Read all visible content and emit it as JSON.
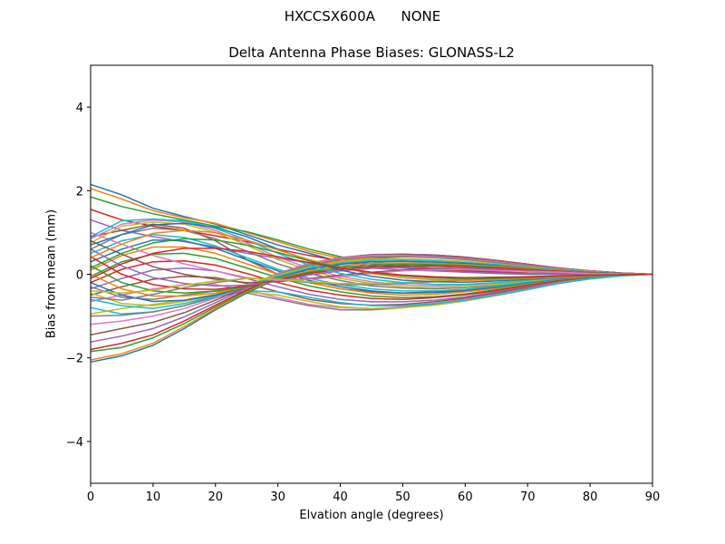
{
  "figure": {
    "suptitle": "HXCCSX600A      NONE"
  },
  "chart_data": {
    "type": "line",
    "title": "Delta Antenna Phase Biases: GLONASS-L2",
    "xlabel": "Elvation angle (degrees)",
    "ylabel": "Bias from mean (mm)",
    "xlim": [
      0,
      90
    ],
    "ylim": [
      -5,
      5
    ],
    "xticks": [
      0,
      10,
      20,
      30,
      40,
      50,
      60,
      70,
      80,
      90
    ],
    "yticks": [
      -4,
      -2,
      0,
      2,
      4
    ],
    "ytick_labels": [
      "−4",
      "−2",
      "0",
      "2",
      "4"
    ],
    "grid": false,
    "legend": "none",
    "x": [
      0,
      5,
      10,
      15,
      20,
      25,
      30,
      35,
      40,
      45,
      50,
      55,
      60,
      65,
      70,
      75,
      80,
      85,
      90
    ],
    "colors": [
      "#1f77b4",
      "#ff7f0e",
      "#2ca02c",
      "#d62728",
      "#9467bd",
      "#8c564b",
      "#e377c2",
      "#7f7f7f",
      "#bcbd22",
      "#17becf"
    ],
    "series": [
      {
        "values": [
          2.15,
          1.9,
          1.58,
          1.38,
          1.2,
          0.95,
          0.7,
          0.5,
          0.3,
          0.2,
          0.15,
          0.1,
          0.05,
          0.02,
          0.0,
          0.0,
          0.0,
          0.0,
          0.0
        ]
      },
      {
        "values": [
          2.05,
          1.8,
          1.52,
          1.35,
          1.22,
          1.0,
          0.78,
          0.55,
          0.38,
          0.25,
          0.18,
          0.12,
          0.08,
          0.05,
          0.02,
          0.01,
          0.0,
          0.0,
          0.0
        ]
      },
      {
        "values": [
          1.85,
          1.62,
          1.45,
          1.3,
          1.15,
          1.02,
          0.82,
          0.6,
          0.42,
          0.3,
          0.22,
          0.15,
          0.1,
          0.06,
          0.03,
          0.02,
          0.01,
          0.0,
          0.0
        ]
      },
      {
        "values": [
          1.55,
          1.3,
          1.15,
          1.05,
          0.92,
          0.78,
          0.6,
          0.45,
          0.32,
          0.25,
          0.18,
          0.12,
          0.08,
          0.05,
          0.03,
          0.01,
          0.0,
          0.0,
          0.0
        ]
      },
      {
        "values": [
          1.3,
          1.05,
          0.9,
          0.78,
          0.65,
          0.5,
          0.38,
          0.28,
          0.2,
          0.15,
          0.1,
          0.08,
          0.05,
          0.03,
          0.02,
          0.01,
          0.0,
          0.0,
          0.0
        ]
      },
      {
        "values": [
          0.9,
          1.05,
          1.2,
          1.1,
          0.8,
          0.35,
          0.0,
          -0.2,
          -0.35,
          -0.42,
          -0.45,
          -0.42,
          -0.38,
          -0.3,
          -0.2,
          -0.12,
          -0.06,
          -0.02,
          0.0
        ]
      },
      {
        "values": [
          0.85,
          1.2,
          1.3,
          1.25,
          1.05,
          0.75,
          0.4,
          0.15,
          -0.05,
          -0.18,
          -0.25,
          -0.28,
          -0.26,
          -0.22,
          -0.15,
          -0.1,
          -0.05,
          -0.02,
          0.0
        ]
      },
      {
        "values": [
          0.6,
          0.95,
          1.1,
          1.05,
          0.85,
          0.55,
          0.25,
          0.02,
          -0.15,
          -0.28,
          -0.33,
          -0.35,
          -0.32,
          -0.26,
          -0.18,
          -0.12,
          -0.06,
          -0.02,
          0.0
        ]
      },
      {
        "values": [
          0.75,
          1.15,
          1.25,
          1.2,
          1.0,
          0.7,
          0.35,
          0.1,
          -0.1,
          -0.22,
          -0.3,
          -0.32,
          -0.3,
          -0.24,
          -0.16,
          -0.1,
          -0.05,
          -0.02,
          0.0
        ]
      },
      {
        "values": [
          0.5,
          0.8,
          0.95,
          0.88,
          0.68,
          0.4,
          0.12,
          -0.1,
          -0.25,
          -0.35,
          -0.4,
          -0.4,
          -0.36,
          -0.28,
          -0.2,
          -0.12,
          -0.06,
          -0.02,
          0.0
        ]
      },
      {
        "values": [
          0.3,
          0.6,
          0.82,
          0.8,
          0.62,
          0.35,
          0.08,
          -0.15,
          -0.3,
          -0.4,
          -0.45,
          -0.44,
          -0.4,
          -0.32,
          -0.22,
          -0.13,
          -0.06,
          -0.02,
          0.0
        ]
      },
      {
        "values": [
          0.1,
          0.45,
          0.65,
          0.65,
          0.5,
          0.25,
          0.0,
          -0.2,
          -0.35,
          -0.45,
          -0.5,
          -0.48,
          -0.42,
          -0.34,
          -0.24,
          -0.14,
          -0.07,
          -0.02,
          0.0
        ]
      },
      {
        "values": [
          -0.05,
          0.3,
          0.48,
          0.5,
          0.38,
          0.15,
          -0.08,
          -0.28,
          -0.42,
          -0.52,
          -0.56,
          -0.54,
          -0.47,
          -0.37,
          -0.26,
          -0.15,
          -0.08,
          -0.03,
          0.0
        ]
      },
      {
        "values": [
          -0.2,
          0.12,
          0.3,
          0.32,
          0.22,
          0.02,
          -0.2,
          -0.38,
          -0.5,
          -0.58,
          -0.6,
          -0.56,
          -0.49,
          -0.39,
          -0.27,
          -0.16,
          -0.08,
          -0.03,
          0.0
        ]
      },
      {
        "values": [
          -0.35,
          -0.1,
          0.1,
          0.15,
          0.08,
          -0.1,
          -0.3,
          -0.48,
          -0.6,
          -0.66,
          -0.66,
          -0.62,
          -0.54,
          -0.42,
          -0.3,
          -0.18,
          -0.09,
          -0.03,
          0.0
        ]
      },
      {
        "values": [
          -0.5,
          -0.3,
          -0.12,
          -0.05,
          -0.08,
          -0.22,
          -0.42,
          -0.6,
          -0.7,
          -0.74,
          -0.72,
          -0.66,
          -0.57,
          -0.45,
          -0.32,
          -0.19,
          -0.09,
          -0.03,
          0.0
        ]
      },
      {
        "values": [
          -0.65,
          -0.5,
          -0.35,
          -0.25,
          -0.25,
          -0.38,
          -0.56,
          -0.72,
          -0.8,
          -0.82,
          -0.78,
          -0.7,
          -0.6,
          -0.48,
          -0.34,
          -0.2,
          -0.1,
          -0.03,
          0.0
        ]
      },
      {
        "values": [
          -0.3,
          -0.55,
          -0.6,
          -0.5,
          -0.4,
          -0.45,
          -0.6,
          -0.75,
          -0.85,
          -0.85,
          -0.8,
          -0.72,
          -0.62,
          -0.5,
          -0.35,
          -0.22,
          -0.1,
          -0.03,
          0.0
        ]
      },
      {
        "values": [
          -0.45,
          -0.7,
          -0.75,
          -0.65,
          -0.5,
          -0.42,
          -0.5,
          -0.65,
          -0.78,
          -0.82,
          -0.8,
          -0.74,
          -0.64,
          -0.51,
          -0.37,
          -0.22,
          -0.11,
          -0.04,
          0.0
        ]
      },
      {
        "values": [
          -0.8,
          -0.95,
          -0.9,
          -0.75,
          -0.55,
          -0.4,
          -0.42,
          -0.55,
          -0.68,
          -0.75,
          -0.75,
          -0.7,
          -0.62,
          -0.5,
          -0.36,
          -0.22,
          -0.11,
          -0.04,
          0.0
        ]
      },
      {
        "values": [
          -2.1,
          -1.95,
          -1.7,
          -1.3,
          -0.85,
          -0.45,
          -0.1,
          0.15,
          0.3,
          0.38,
          0.42,
          0.42,
          0.38,
          0.3,
          0.22,
          0.14,
          0.08,
          0.03,
          0.0
        ]
      },
      {
        "values": [
          -2.05,
          -1.9,
          -1.65,
          -1.25,
          -0.82,
          -0.42,
          -0.08,
          0.18,
          0.32,
          0.4,
          0.44,
          0.44,
          0.4,
          0.32,
          0.23,
          0.15,
          0.08,
          0.03,
          0.0
        ]
      },
      {
        "values": [
          -1.85,
          -1.75,
          -1.52,
          -1.18,
          -0.78,
          -0.4,
          -0.05,
          0.2,
          0.36,
          0.44,
          0.47,
          0.46,
          0.41,
          0.33,
          0.24,
          0.15,
          0.08,
          0.03,
          0.0
        ]
      },
      {
        "values": [
          -1.8,
          -1.65,
          -1.45,
          -1.12,
          -0.74,
          -0.37,
          -0.03,
          0.22,
          0.38,
          0.46,
          0.48,
          0.46,
          0.41,
          0.33,
          0.24,
          0.15,
          0.08,
          0.03,
          0.0
        ]
      },
      {
        "values": [
          -1.62,
          -1.48,
          -1.3,
          -1.02,
          -0.68,
          -0.33,
          0.0,
          0.25,
          0.4,
          0.47,
          0.48,
          0.46,
          0.4,
          0.32,
          0.23,
          0.15,
          0.08,
          0.03,
          0.0
        ]
      },
      {
        "values": [
          -1.45,
          -1.3,
          -1.15,
          -0.92,
          -0.62,
          -0.3,
          0.02,
          0.26,
          0.4,
          0.46,
          0.47,
          0.44,
          0.39,
          0.31,
          0.22,
          0.14,
          0.07,
          0.03,
          0.0
        ]
      },
      {
        "values": [
          -1.2,
          -1.12,
          -1.0,
          -0.82,
          -0.57,
          -0.28,
          0.02,
          0.25,
          0.39,
          0.45,
          0.45,
          0.42,
          0.37,
          0.3,
          0.21,
          0.13,
          0.07,
          0.02,
          0.0
        ]
      },
      {
        "values": [
          -1.0,
          -0.98,
          -0.9,
          -0.75,
          -0.53,
          -0.27,
          0.0,
          0.22,
          0.36,
          0.42,
          0.42,
          0.4,
          0.35,
          0.28,
          0.2,
          0.12,
          0.06,
          0.02,
          0.0
        ]
      },
      {
        "values": [
          -0.95,
          -0.82,
          -0.72,
          -0.62,
          -0.48,
          -0.25,
          -0.02,
          0.18,
          0.3,
          0.36,
          0.37,
          0.35,
          0.31,
          0.25,
          0.18,
          0.11,
          0.06,
          0.02,
          0.0
        ]
      },
      {
        "values": [
          -0.6,
          -0.75,
          -0.82,
          -0.7,
          -0.52,
          -0.3,
          -0.05,
          0.15,
          0.27,
          0.33,
          0.34,
          0.32,
          0.28,
          0.23,
          0.16,
          0.1,
          0.05,
          0.02,
          0.0
        ]
      },
      {
        "values": [
          -0.2,
          -0.5,
          -0.65,
          -0.62,
          -0.5,
          -0.3,
          -0.08,
          0.12,
          0.24,
          0.3,
          0.31,
          0.29,
          0.26,
          0.21,
          0.15,
          0.09,
          0.05,
          0.02,
          0.0
        ]
      },
      {
        "values": [
          0.0,
          -0.35,
          -0.52,
          -0.52,
          -0.45,
          -0.3,
          -0.1,
          0.08,
          0.2,
          0.26,
          0.27,
          0.26,
          0.23,
          0.19,
          0.14,
          0.08,
          0.04,
          0.01,
          0.0
        ]
      },
      {
        "values": [
          0.2,
          -0.2,
          -0.4,
          -0.45,
          -0.4,
          -0.3,
          -0.12,
          0.05,
          0.16,
          0.22,
          0.24,
          0.23,
          0.21,
          0.17,
          0.12,
          0.07,
          0.04,
          0.01,
          0.0
        ]
      },
      {
        "values": [
          0.42,
          0.0,
          -0.25,
          -0.35,
          -0.36,
          -0.28,
          -0.14,
          0.02,
          0.12,
          0.18,
          0.2,
          0.2,
          0.18,
          0.15,
          0.11,
          0.07,
          0.03,
          0.01,
          0.0
        ]
      },
      {
        "values": [
          0.6,
          0.2,
          -0.08,
          -0.22,
          -0.28,
          -0.26,
          -0.16,
          -0.02,
          0.08,
          0.14,
          0.16,
          0.16,
          0.15,
          0.12,
          0.09,
          0.06,
          0.03,
          0.01,
          0.0
        ]
      },
      {
        "values": [
          0.8,
          0.48,
          0.18,
          0.0,
          -0.12,
          -0.2,
          -0.18,
          -0.1,
          -0.02,
          0.05,
          0.1,
          0.12,
          0.12,
          0.1,
          0.08,
          0.05,
          0.03,
          0.01,
          0.0
        ]
      },
      {
        "values": [
          1.0,
          0.72,
          0.45,
          0.25,
          0.08,
          -0.08,
          -0.15,
          -0.12,
          -0.06,
          0.02,
          0.08,
          0.11,
          0.11,
          0.09,
          0.07,
          0.05,
          0.02,
          0.01,
          0.0
        ]
      },
      {
        "values": [
          -0.55,
          -0.62,
          -0.48,
          -0.32,
          -0.2,
          -0.1,
          -0.12,
          -0.2,
          -0.25,
          -0.25,
          -0.22,
          -0.18,
          -0.14,
          -0.1,
          -0.07,
          -0.04,
          -0.02,
          -0.01,
          0.0
        ]
      },
      {
        "values": [
          -0.4,
          -0.45,
          -0.38,
          -0.26,
          -0.16,
          -0.1,
          -0.12,
          -0.18,
          -0.22,
          -0.22,
          -0.2,
          -0.16,
          -0.12,
          -0.09,
          -0.06,
          -0.04,
          -0.02,
          -0.01,
          0.0
        ]
      },
      {
        "values": [
          0.9,
          1.28,
          1.32,
          1.28,
          1.1,
          0.82,
          0.5,
          0.22,
          0.02,
          -0.12,
          -0.2,
          -0.24,
          -0.24,
          -0.2,
          -0.14,
          -0.09,
          -0.05,
          -0.02,
          0.0
        ]
      },
      {
        "values": [
          0.7,
          0.95,
          1.18,
          1.22,
          1.12,
          0.9,
          0.6,
          0.32,
          0.1,
          -0.05,
          -0.14,
          -0.18,
          -0.19,
          -0.16,
          -0.12,
          -0.08,
          -0.04,
          -0.01,
          0.0
        ]
      },
      {
        "values": [
          0.4,
          0.72,
          0.98,
          1.05,
          1.0,
          0.82,
          0.58,
          0.35,
          0.16,
          0.02,
          -0.08,
          -0.13,
          -0.15,
          -0.13,
          -0.1,
          -0.07,
          -0.04,
          -0.01,
          0.0
        ]
      },
      {
        "values": [
          0.15,
          0.5,
          0.75,
          0.85,
          0.82,
          0.7,
          0.52,
          0.32,
          0.16,
          0.04,
          -0.04,
          -0.09,
          -0.11,
          -0.1,
          -0.08,
          -0.05,
          -0.03,
          -0.01,
          0.0
        ]
      },
      {
        "values": [
          -0.1,
          0.25,
          0.5,
          0.62,
          0.62,
          0.55,
          0.42,
          0.28,
          0.15,
          0.05,
          -0.02,
          -0.06,
          -0.08,
          -0.07,
          -0.06,
          -0.04,
          -0.02,
          -0.01,
          0.0
        ]
      }
    ]
  }
}
